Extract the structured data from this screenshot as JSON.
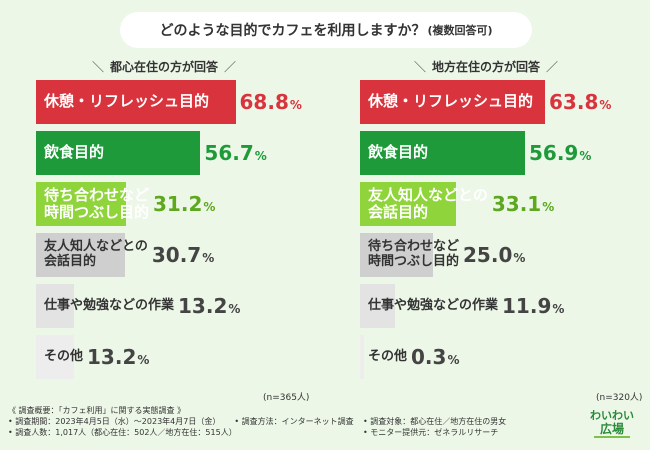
{
  "title": {
    "main": "どのような目的でカフェを利用しますか？",
    "sub": "(複数回答可)"
  },
  "chart_data": [
    {
      "type": "bar",
      "title": "都心在住の方が回答",
      "n_label": "(n=365人)",
      "xlim": [
        0,
        100
      ],
      "categories": [
        "休憩・リフレッシュ目的",
        "飲食目的",
        "待ち合わせなど時間つぶし目的",
        "友人知人などとの会話目的",
        "仕事や勉強などの作業",
        "その他"
      ],
      "values": [
        68.8,
        56.7,
        31.2,
        30.7,
        13.2,
        13.2
      ],
      "colors": [
        "#d9343d",
        "#1f9a3a",
        "#8fd43a",
        "#cfcfcf",
        "#e3e3e3",
        "#ededed"
      ]
    },
    {
      "type": "bar",
      "title": "地方在住の方が回答",
      "n_label": "(n=320人)",
      "xlim": [
        0,
        100
      ],
      "categories": [
        "休憩・リフレッシュ目的",
        "飲食目的",
        "友人知人などとの会話目的",
        "待ち合わせなど時間つぶし目的",
        "仕事や勉強などの作業",
        "その他"
      ],
      "values": [
        63.8,
        56.9,
        33.1,
        25.0,
        11.9,
        0.3
      ],
      "colors": [
        "#d9343d",
        "#1f9a3a",
        "#8fd43a",
        "#cfcfcf",
        "#e3e3e3",
        "#ededed"
      ]
    }
  ],
  "panel_labels": [
    [
      "休憩・リフレッシュ目的",
      "飲食目的",
      "待ち合わせなど\n時間つぶし目的",
      "友人知人などとの\n会話目的",
      "仕事や勉強などの作業",
      "その他"
    ],
    [
      "休憩・リフレッシュ目的",
      "飲食目的",
      "友人知人などとの\n会話目的",
      "待ち合わせなど\n時間つぶし目的",
      "仕事や勉強などの作業",
      "その他"
    ]
  ],
  "value_labels": [
    [
      "68.8",
      "56.7",
      "31.2",
      "30.7",
      "13.2",
      "13.2"
    ],
    [
      "63.8",
      "56.9",
      "33.1",
      "25.0",
      "11.9",
      "0.3"
    ]
  ],
  "value_colors": [
    "#d9343d",
    "#1f9a3a",
    "#5da81f",
    "#444444",
    "#444444",
    "#444444"
  ],
  "label_colors": [
    "#ffffff",
    "#ffffff",
    "#ffffff",
    "#333333",
    "#333333",
    "#333333"
  ],
  "pct_sign": "%",
  "footer": {
    "line1": "《 調査概要：「カフェ利用」に関する実態調査 》",
    "line2": "• 調査期間：2023年4月5日（水）～2023年4月7日（金）",
    "line2b": "• 調査方法：インターネット調査",
    "line3": "• 調査人数：1,017人（都心在住：502人／地方在住：515人）",
    "right1": "• 調査対象：都心在住／地方在住の男女",
    "right2": "• モニター提供元：ゼネラルリサーチ"
  },
  "logo": {
    "line1": "わいわい",
    "line2": "広場"
  }
}
